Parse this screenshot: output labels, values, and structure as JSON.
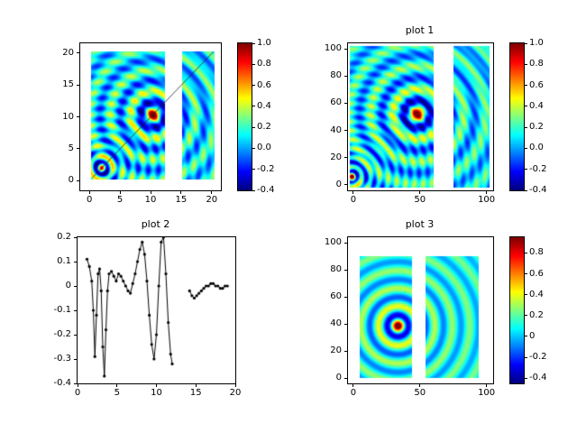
{
  "figure": {
    "background": "#ffffff",
    "colormap": "jet"
  },
  "chart_data": [
    {
      "type": "heatmap",
      "title": "",
      "x_range": [
        -1.5,
        21.5
      ],
      "y_range": [
        -1.5,
        21.5
      ],
      "x_ticks": [
        "0",
        "5",
        "10",
        "15",
        "20"
      ],
      "x_tick_values": [
        0,
        5,
        10,
        15,
        20
      ],
      "y_ticks": [
        "0",
        "5",
        "10",
        "15",
        "20"
      ],
      "y_tick_values": [
        0,
        5,
        10,
        15,
        20
      ],
      "blocks": [
        {
          "x": [
            0.2,
            12.4
          ],
          "y": [
            0.2,
            20.2
          ]
        },
        {
          "x": [
            15.2,
            20.4
          ],
          "y": [
            0.2,
            20.2
          ]
        }
      ],
      "sources": [
        {
          "x": 10.4,
          "y": 10.3,
          "k": 1.9,
          "amp": 1.0
        },
        {
          "x": 2.0,
          "y": 2.0,
          "k": 3.8,
          "amp": 1.0
        }
      ],
      "baseline": 0.1,
      "function": "radial Bessel J0 wave, clipped to value_range",
      "value_range": [
        -0.4,
        1.0
      ],
      "overlay_line": {
        "x1": 0.5,
        "y1": 0.5,
        "x2": 20.3,
        "y2": 20.2
      },
      "colorbar_ticks": [
        "1.0",
        "0.8",
        "0.6",
        "0.4",
        "0.2",
        "0.0",
        "-0.2",
        "-0.4"
      ],
      "colorbar_tick_values": [
        1.0,
        0.8,
        0.6,
        0.4,
        0.2,
        0.0,
        -0.2,
        -0.4
      ],
      "colormap": "jet"
    },
    {
      "type": "heatmap",
      "title": "plot 1",
      "x_range": [
        -4,
        105
      ],
      "y_range": [
        -4,
        104
      ],
      "x_ticks": [
        "0",
        "50",
        "100"
      ],
      "x_tick_values": [
        0,
        50,
        100
      ],
      "y_ticks": [
        "0",
        "20",
        "40",
        "60",
        "80",
        "100"
      ],
      "y_tick_values": [
        0,
        20,
        40,
        60,
        80,
        100
      ],
      "blocks": [
        {
          "x": [
            -2.5,
            60.5
          ],
          "y": [
            -2,
            102
          ]
        },
        {
          "x": [
            75.5,
            102.5
          ],
          "y": [
            -2,
            102
          ]
        }
      ],
      "sources": [
        {
          "x": 48,
          "y": 52,
          "k": 0.38,
          "amp": 1.0
        },
        {
          "x": -1,
          "y": 6,
          "k": 0.95,
          "amp": 1.0
        }
      ],
      "baseline": 0.1,
      "function": "radial Bessel J0 wave, clipped to value_range",
      "value_range": [
        -0.4,
        1.0
      ],
      "colorbar_ticks": [
        "1.0",
        "0.8",
        "0.6",
        "0.4",
        "0.2",
        "0.0",
        "-0.2",
        "-0.4"
      ],
      "colorbar_tick_values": [
        1.0,
        0.8,
        0.6,
        0.4,
        0.2,
        0.0,
        -0.2,
        -0.4
      ],
      "colormap": "jet"
    },
    {
      "type": "line",
      "title": "plot 2",
      "x_range": [
        0,
        20
      ],
      "y_range": [
        -0.4,
        0.2
      ],
      "x_ticks": [
        "0",
        "5",
        "10",
        "15",
        "20"
      ],
      "x_tick_values": [
        0,
        5,
        10,
        15,
        20
      ],
      "y_ticks": [
        "0.2",
        "0.1",
        "0",
        "-0.1",
        "-0.2",
        "-0.3",
        "-0.4"
      ],
      "y_tick_values": [
        0.2,
        0.1,
        0,
        -0.1,
        -0.2,
        -0.3,
        -0.4
      ],
      "line_color": "#000000",
      "marker": "dot",
      "segments": [
        {
          "x": [
            1.2,
            1.5,
            1.8,
            2.0,
            2.2,
            2.4,
            2.6,
            2.8,
            3.0,
            3.2,
            3.4,
            3.6,
            3.8,
            4.0,
            4.3,
            4.6,
            4.9,
            5.2,
            5.5,
            5.8,
            6.1,
            6.4,
            6.7,
            7.0,
            7.3,
            7.6,
            7.9,
            8.2,
            8.5,
            8.8,
            9.1,
            9.4,
            9.7,
            10.0,
            10.3,
            10.6,
            10.9,
            11.2,
            11.5,
            11.8,
            12.0
          ],
          "y": [
            0.11,
            0.08,
            0.02,
            -0.1,
            -0.29,
            -0.12,
            0.05,
            0.07,
            -0.02,
            -0.25,
            -0.37,
            -0.18,
            -0.02,
            0.05,
            0.06,
            0.04,
            0.02,
            0.05,
            0.04,
            0.02,
            0.0,
            -0.02,
            -0.03,
            0.01,
            0.05,
            0.1,
            0.15,
            0.18,
            0.13,
            0.02,
            -0.12,
            -0.24,
            -0.3,
            -0.2,
            0.0,
            0.18,
            0.2,
            0.05,
            -0.15,
            -0.28,
            -0.32
          ]
        },
        {
          "x": [
            14.2,
            14.5,
            14.8,
            15.1,
            15.4,
            15.7,
            16.0,
            16.3,
            16.6,
            16.9,
            17.2,
            17.5,
            17.8,
            18.1,
            18.4,
            18.7,
            19.0
          ],
          "y": [
            -0.02,
            -0.04,
            -0.05,
            -0.04,
            -0.03,
            -0.02,
            -0.01,
            0.0,
            0.0,
            0.01,
            0.01,
            0.0,
            0.0,
            -0.01,
            -0.01,
            0.0,
            0.0
          ]
        }
      ]
    },
    {
      "type": "heatmap",
      "title": "plot 3",
      "x_range": [
        -4,
        105
      ],
      "y_range": [
        -4,
        104
      ],
      "x_ticks": [
        "0",
        "50",
        "100"
      ],
      "x_tick_values": [
        0,
        50,
        100
      ],
      "y_ticks": [
        "0",
        "20",
        "40",
        "60",
        "80",
        "100"
      ],
      "y_tick_values": [
        0,
        20,
        40,
        60,
        80,
        100
      ],
      "blocks": [
        {
          "x": [
            5,
            44
          ],
          "y": [
            0,
            90
          ]
        },
        {
          "x": [
            54.5,
            94.5
          ],
          "y": [
            0,
            90
          ]
        }
      ],
      "sources": [
        {
          "x": 33.5,
          "y": 38.5,
          "k": 0.48,
          "amp": 1.0
        }
      ],
      "baseline": 0.1,
      "function": "radial Bessel J0 wave, clipped to value_range",
      "value_range": [
        -0.45,
        0.95
      ],
      "colorbar_ticks": [
        "0.8",
        "0.6",
        "0.4",
        "0.2",
        "0",
        "-0.2",
        "-0.4"
      ],
      "colorbar_tick_values": [
        0.8,
        0.6,
        0.4,
        0.2,
        0,
        -0.2,
        -0.4
      ],
      "colormap": "jet"
    }
  ]
}
